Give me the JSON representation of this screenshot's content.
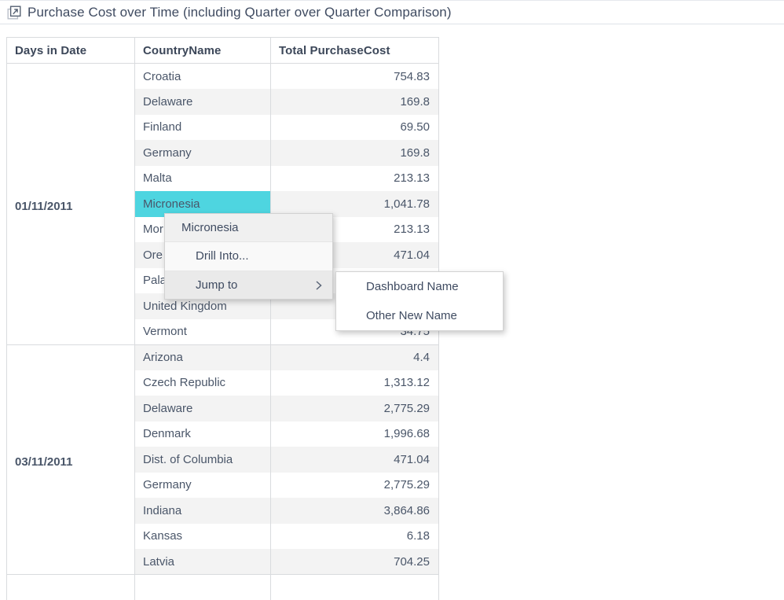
{
  "widget": {
    "title": "Purchase Cost over Time (including Quarter over Quarter Comparison)"
  },
  "table": {
    "columns": [
      "Days in Date",
      "CountryName",
      "Total PurchaseCost"
    ],
    "groups": [
      {
        "date": "01/11/2011",
        "rows": [
          {
            "country": "Croatia",
            "value": "754.83"
          },
          {
            "country": "Delaware",
            "value": "169.8"
          },
          {
            "country": "Finland",
            "value": "69.50"
          },
          {
            "country": "Germany",
            "value": "169.8"
          },
          {
            "country": "Malta",
            "value": "213.13"
          },
          {
            "country": "Micronesia",
            "value": "1,041.78",
            "highlighted": true
          },
          {
            "country": "Mor",
            "value": "213.13"
          },
          {
            "country": "Ore",
            "value": "471.04"
          },
          {
            "country": "Pala",
            "value": ""
          },
          {
            "country": "United Kingdom",
            "value": ""
          },
          {
            "country": "Vermont",
            "value": "34.75"
          }
        ]
      },
      {
        "date": "03/11/2011",
        "rows": [
          {
            "country": "Arizona",
            "value": "4.4"
          },
          {
            "country": "Czech Republic",
            "value": "1,313.12"
          },
          {
            "country": "Delaware",
            "value": "2,775.29"
          },
          {
            "country": "Denmark",
            "value": "1,996.68"
          },
          {
            "country": "Dist. of Columbia",
            "value": "471.04"
          },
          {
            "country": "Germany",
            "value": "2,775.29"
          },
          {
            "country": "Indiana",
            "value": "3,864.86"
          },
          {
            "country": "Kansas",
            "value": "6.18"
          },
          {
            "country": "Latvia",
            "value": "704.25"
          }
        ]
      }
    ]
  },
  "context_menu": {
    "header": "Micronesia",
    "drill_label": "Drill Into...",
    "jump_label": "Jump to",
    "submenu": [
      "Dashboard Name",
      "Other New Name"
    ]
  },
  "colors": {
    "highlight_cyan": "#4ed5e0",
    "text_slate": "#3f4b61",
    "zebra_gray": "#f3f3f3",
    "border_gray": "#d9dbde",
    "menu_hover": "#eaeaea"
  }
}
